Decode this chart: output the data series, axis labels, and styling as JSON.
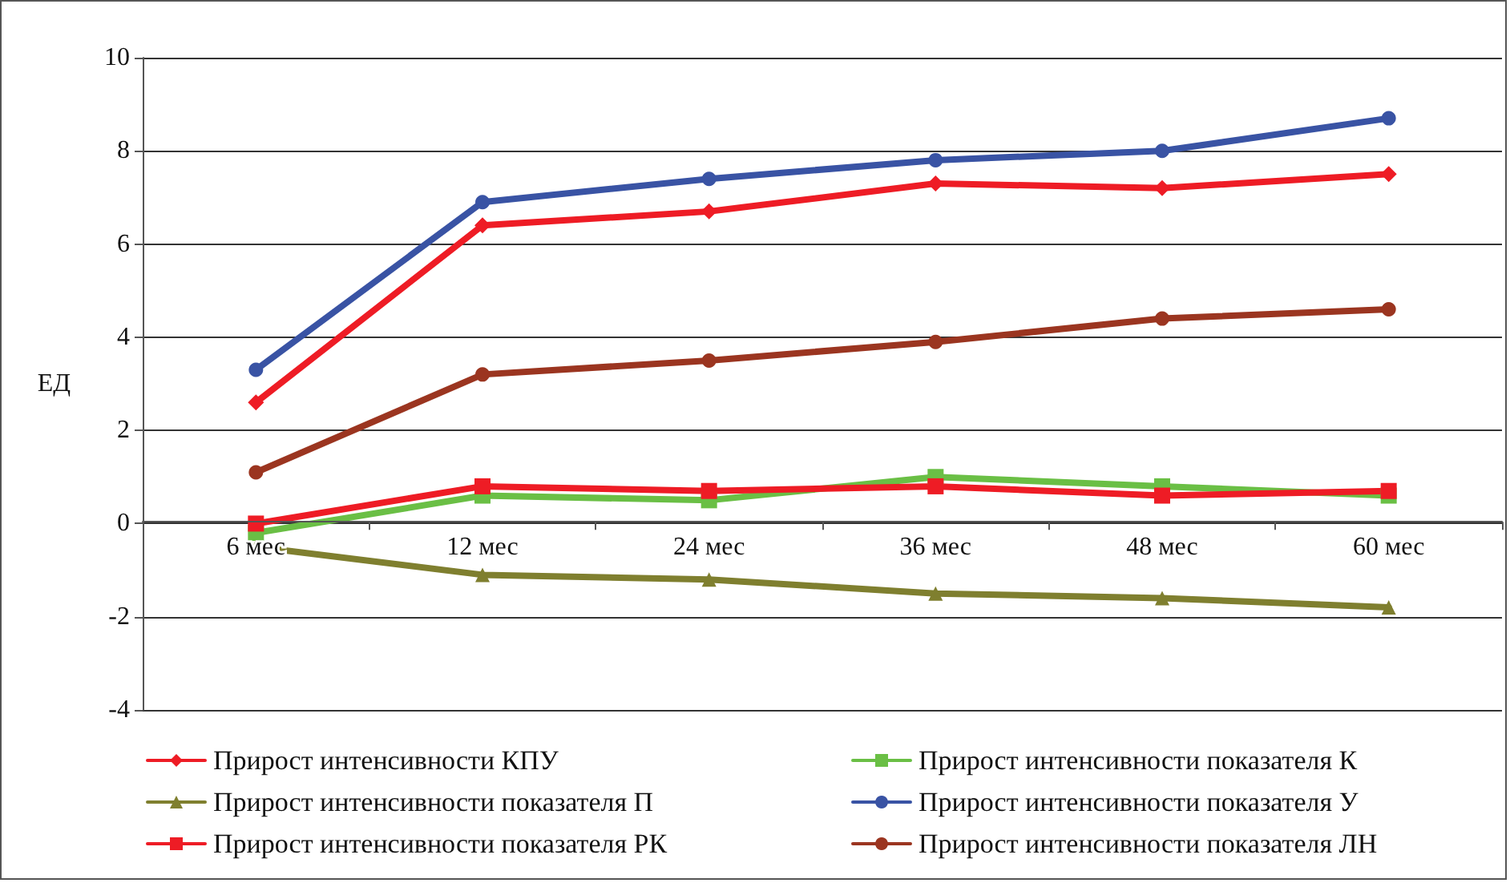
{
  "chart_data": {
    "type": "line",
    "ylabel": "ЕД",
    "categories": [
      "6 мес",
      "12 мес",
      "24 мес",
      "36 мес",
      "48 мес",
      "60 мес"
    ],
    "series": [
      {
        "name": "Прирост интенсивности КПУ",
        "color": "#ee1c25",
        "marker": "diamond",
        "values": [
          2.6,
          6.4,
          6.7,
          7.3,
          7.2,
          7.5
        ]
      },
      {
        "name": "Прирост интенсивности показателя К",
        "color": "#6abf45",
        "marker": "square",
        "values": [
          -0.2,
          0.6,
          0.5,
          1.0,
          0.8,
          0.6
        ]
      },
      {
        "name": "Прирост интенсивности показателя П",
        "color": "#7f7f2f",
        "marker": "triangle",
        "values": [
          -0.5,
          -1.1,
          -1.2,
          -1.5,
          -1.6,
          -1.8
        ]
      },
      {
        "name": "Прирост интенсивности показателя У",
        "color": "#3953a4",
        "marker": "circle",
        "values": [
          3.3,
          6.9,
          7.4,
          7.8,
          8.0,
          8.7
        ]
      },
      {
        "name": "Прирост интенсивности показателя РК",
        "color": "#ee1c25",
        "marker": "square",
        "values": [
          0,
          0.8,
          0.7,
          0.8,
          0.6,
          0.7
        ]
      },
      {
        "name": "Прирост интенсивности показателя ЛН",
        "color": "#9b3520",
        "marker": "circle",
        "values": [
          1.1,
          3.2,
          3.5,
          3.9,
          4.4,
          4.6
        ]
      }
    ],
    "ylim": [
      -4,
      10
    ],
    "yticks": [
      -4,
      -2,
      0,
      2,
      4,
      6,
      8,
      10
    ],
    "grid": "y",
    "legend": "bottom",
    "line_style": "solid"
  }
}
